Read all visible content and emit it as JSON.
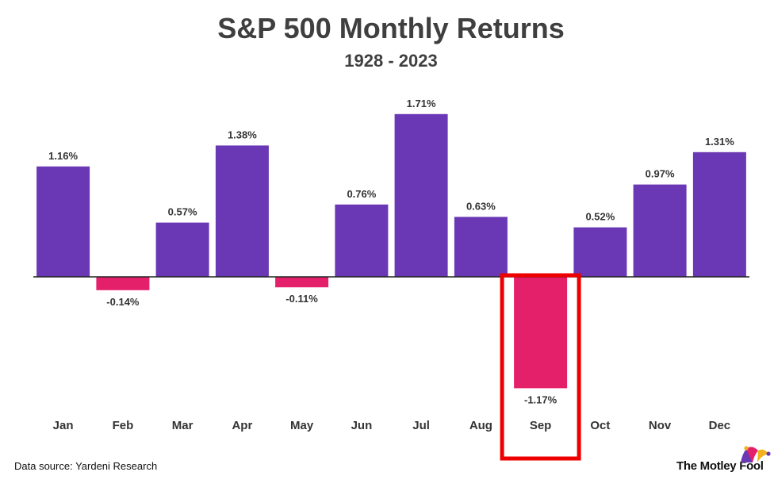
{
  "chart_data": {
    "type": "bar",
    "title": "S&P 500 Monthly Returns",
    "subtitle": "1928 - 2023",
    "categories": [
      "Jan",
      "Feb",
      "Mar",
      "Apr",
      "May",
      "Jun",
      "Jul",
      "Aug",
      "Sep",
      "Oct",
      "Nov",
      "Dec"
    ],
    "values": [
      1.16,
      -0.14,
      0.57,
      1.38,
      -0.11,
      0.76,
      1.71,
      0.63,
      -1.17,
      0.52,
      0.97,
      1.31
    ],
    "value_labels": [
      "1.16%",
      "-0.14%",
      "0.57%",
      "1.38%",
      "-0.11%",
      "0.76%",
      "1.71%",
      "0.63%",
      "-1.17%",
      "0.52%",
      "0.97%",
      "1.31%"
    ],
    "xlabel": "",
    "ylabel": "",
    "ylim": [
      -1.5,
      1.9
    ],
    "grid": false,
    "legend": "none",
    "highlight_category": "Sep",
    "colors": {
      "positive": "#6a38b5",
      "negative": "#e5206b",
      "highlight_box": "#ee0000",
      "baseline": "#222222"
    }
  },
  "footer": {
    "source": "Data source: Yardeni Research",
    "brand": "The Motley Fool",
    "brand_icon": "jester-hat-icon"
  }
}
